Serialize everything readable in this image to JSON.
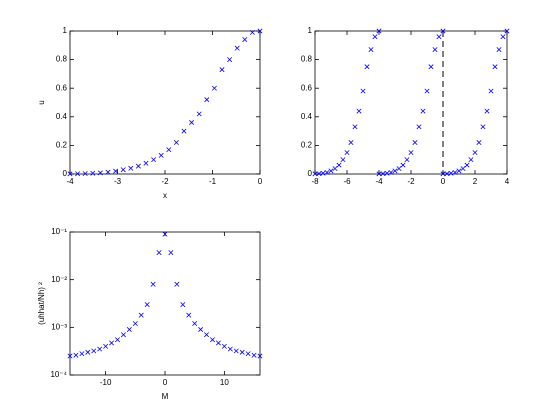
{
  "chart_data": [
    {
      "type": "scatter",
      "xlabel": "x",
      "ylabel": "u",
      "color": "#0000ff",
      "marker": "x",
      "xlim": [
        -4,
        0
      ],
      "ylim": [
        0,
        1
      ],
      "xticks": [
        -4,
        -3,
        -2,
        -1,
        0
      ],
      "yticks": [
        0,
        0.2,
        0.4,
        0.6,
        0.8,
        1
      ],
      "x": [
        -4,
        -3.84,
        -3.68,
        -3.52,
        -3.36,
        -3.2,
        -3.04,
        -2.88,
        -2.72,
        -2.56,
        -2.4,
        -2.24,
        -2.08,
        -1.92,
        -1.76,
        -1.6,
        -1.44,
        -1.28,
        -1.12,
        -0.96,
        -0.8,
        -0.64,
        -0.48,
        -0.32,
        -0.16,
        0
      ],
      "values": [
        0.001,
        0.002,
        0.003,
        0.005,
        0.008,
        0.013,
        0.02,
        0.03,
        0.04,
        0.055,
        0.075,
        0.1,
        0.13,
        0.17,
        0.22,
        0.3,
        0.36,
        0.42,
        0.52,
        0.6,
        0.73,
        0.8,
        0.88,
        0.94,
        0.99,
        1
      ]
    },
    {
      "type": "scatter",
      "color": "#0000ff",
      "marker": "x",
      "vline": 0,
      "xlim": [
        -8,
        4
      ],
      "ylim": [
        0,
        1
      ],
      "xticks": [
        -8,
        -6,
        -4,
        -2,
        0,
        2,
        4
      ],
      "yticks": [
        0,
        0.2,
        0.4,
        0.6,
        0.8,
        1
      ],
      "series": [
        {
          "x": [
            -8,
            -7.75,
            -7.5,
            -7.25,
            -7,
            -6.75,
            -6.5,
            -6.25,
            -6,
            -5.75,
            -5.5,
            -5.25,
            -5,
            -4.75,
            -4.5,
            -4.25,
            -4
          ],
          "values": [
            0.001,
            0.0025,
            0.005,
            0.011,
            0.022,
            0.038,
            0.062,
            0.1,
            0.15,
            0.22,
            0.33,
            0.44,
            0.58,
            0.75,
            0.87,
            0.96,
            1
          ]
        },
        {
          "x": [
            -4,
            -3.75,
            -3.5,
            -3.25,
            -3,
            -2.75,
            -2.5,
            -2.25,
            -2,
            -1.75,
            -1.5,
            -1.25,
            -1,
            -0.75,
            -0.5,
            -0.25,
            0
          ],
          "values": [
            0.001,
            0.0025,
            0.005,
            0.011,
            0.022,
            0.038,
            0.062,
            0.1,
            0.15,
            0.22,
            0.33,
            0.44,
            0.58,
            0.75,
            0.87,
            0.96,
            1
          ]
        },
        {
          "x": [
            0,
            0.25,
            0.5,
            0.75,
            1,
            1.25,
            1.5,
            1.75,
            2,
            2.25,
            2.5,
            2.75,
            3,
            3.25,
            3.5,
            3.75,
            4
          ],
          "values": [
            0.001,
            0.0025,
            0.005,
            0.011,
            0.022,
            0.038,
            0.062,
            0.1,
            0.15,
            0.22,
            0.33,
            0.44,
            0.58,
            0.75,
            0.87,
            0.96,
            1
          ]
        }
      ]
    },
    {
      "type": "scatter",
      "xlabel": "M",
      "ylabel": "(uhhat/Nh) ²",
      "color": "#0000ff",
      "marker": "x",
      "log_y": true,
      "xlim": [
        -16,
        16
      ],
      "ylim": [
        0.0001,
        0.1
      ],
      "xticks": [
        -10,
        0,
        10
      ],
      "yticks": [
        {
          "value": 0.0001,
          "label": "10⁻⁴"
        },
        {
          "value": 0.001,
          "label": "10⁻³"
        },
        {
          "value": 0.01,
          "label": "10⁻²"
        },
        {
          "value": 0.1,
          "label": "10⁻¹"
        }
      ],
      "x": [
        -16,
        -15,
        -14,
        -13,
        -12,
        -11,
        -10,
        -9,
        -8,
        -7,
        -6,
        -5,
        -4,
        -3,
        -2,
        -1,
        0,
        1,
        2,
        3,
        4,
        5,
        6,
        7,
        8,
        9,
        10,
        11,
        12,
        13,
        14,
        15,
        16
      ],
      "values": [
        0.00025,
        0.00026,
        0.00028,
        0.0003,
        0.00032,
        0.00035,
        0.0004,
        0.00047,
        0.00055,
        0.0007,
        0.0009,
        0.0012,
        0.0018,
        0.003,
        0.008,
        0.037,
        0.09,
        0.037,
        0.008,
        0.003,
        0.0018,
        0.0012,
        0.0009,
        0.0007,
        0.00055,
        0.00047,
        0.0004,
        0.00035,
        0.00032,
        0.0003,
        0.00028,
        0.00026,
        0.00025
      ]
    }
  ]
}
